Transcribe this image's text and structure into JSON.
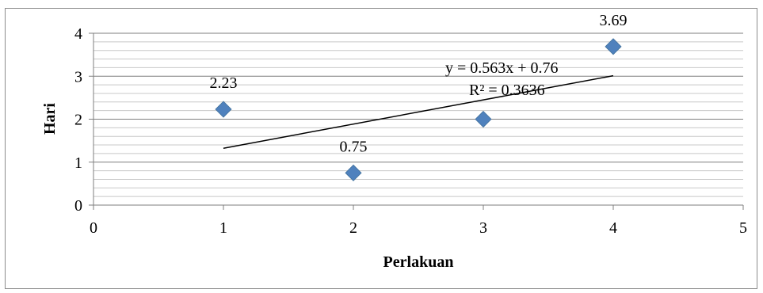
{
  "chart_data": {
    "type": "scatter",
    "title": "",
    "xlabel": "Perlakuan",
    "ylabel": "Hari",
    "xlim": [
      0,
      5
    ],
    "ylim": [
      0,
      4
    ],
    "x_ticks": [
      0,
      1,
      2,
      3,
      4,
      5
    ],
    "y_ticks": [
      0,
      1,
      2,
      3,
      4
    ],
    "grid": "horizontal major and minor",
    "legend": "none",
    "marker": "diamond",
    "marker_color": "#4f81bd",
    "series": [
      {
        "points": [
          {
            "x": 1,
            "y": 2.23,
            "label": "2.23"
          },
          {
            "x": 2,
            "y": 0.75,
            "label": "0.75"
          },
          {
            "x": 3,
            "y": 2.0,
            "label": ""
          },
          {
            "x": 4,
            "y": 3.69,
            "label": "3.69"
          }
        ]
      }
    ],
    "trendline": {
      "type": "linear",
      "slope": 0.563,
      "intercept": 0.76,
      "x_range": [
        1,
        4
      ],
      "equation": "y = 0.563x + 0.76",
      "r_squared": "R² = 0.3636"
    }
  }
}
